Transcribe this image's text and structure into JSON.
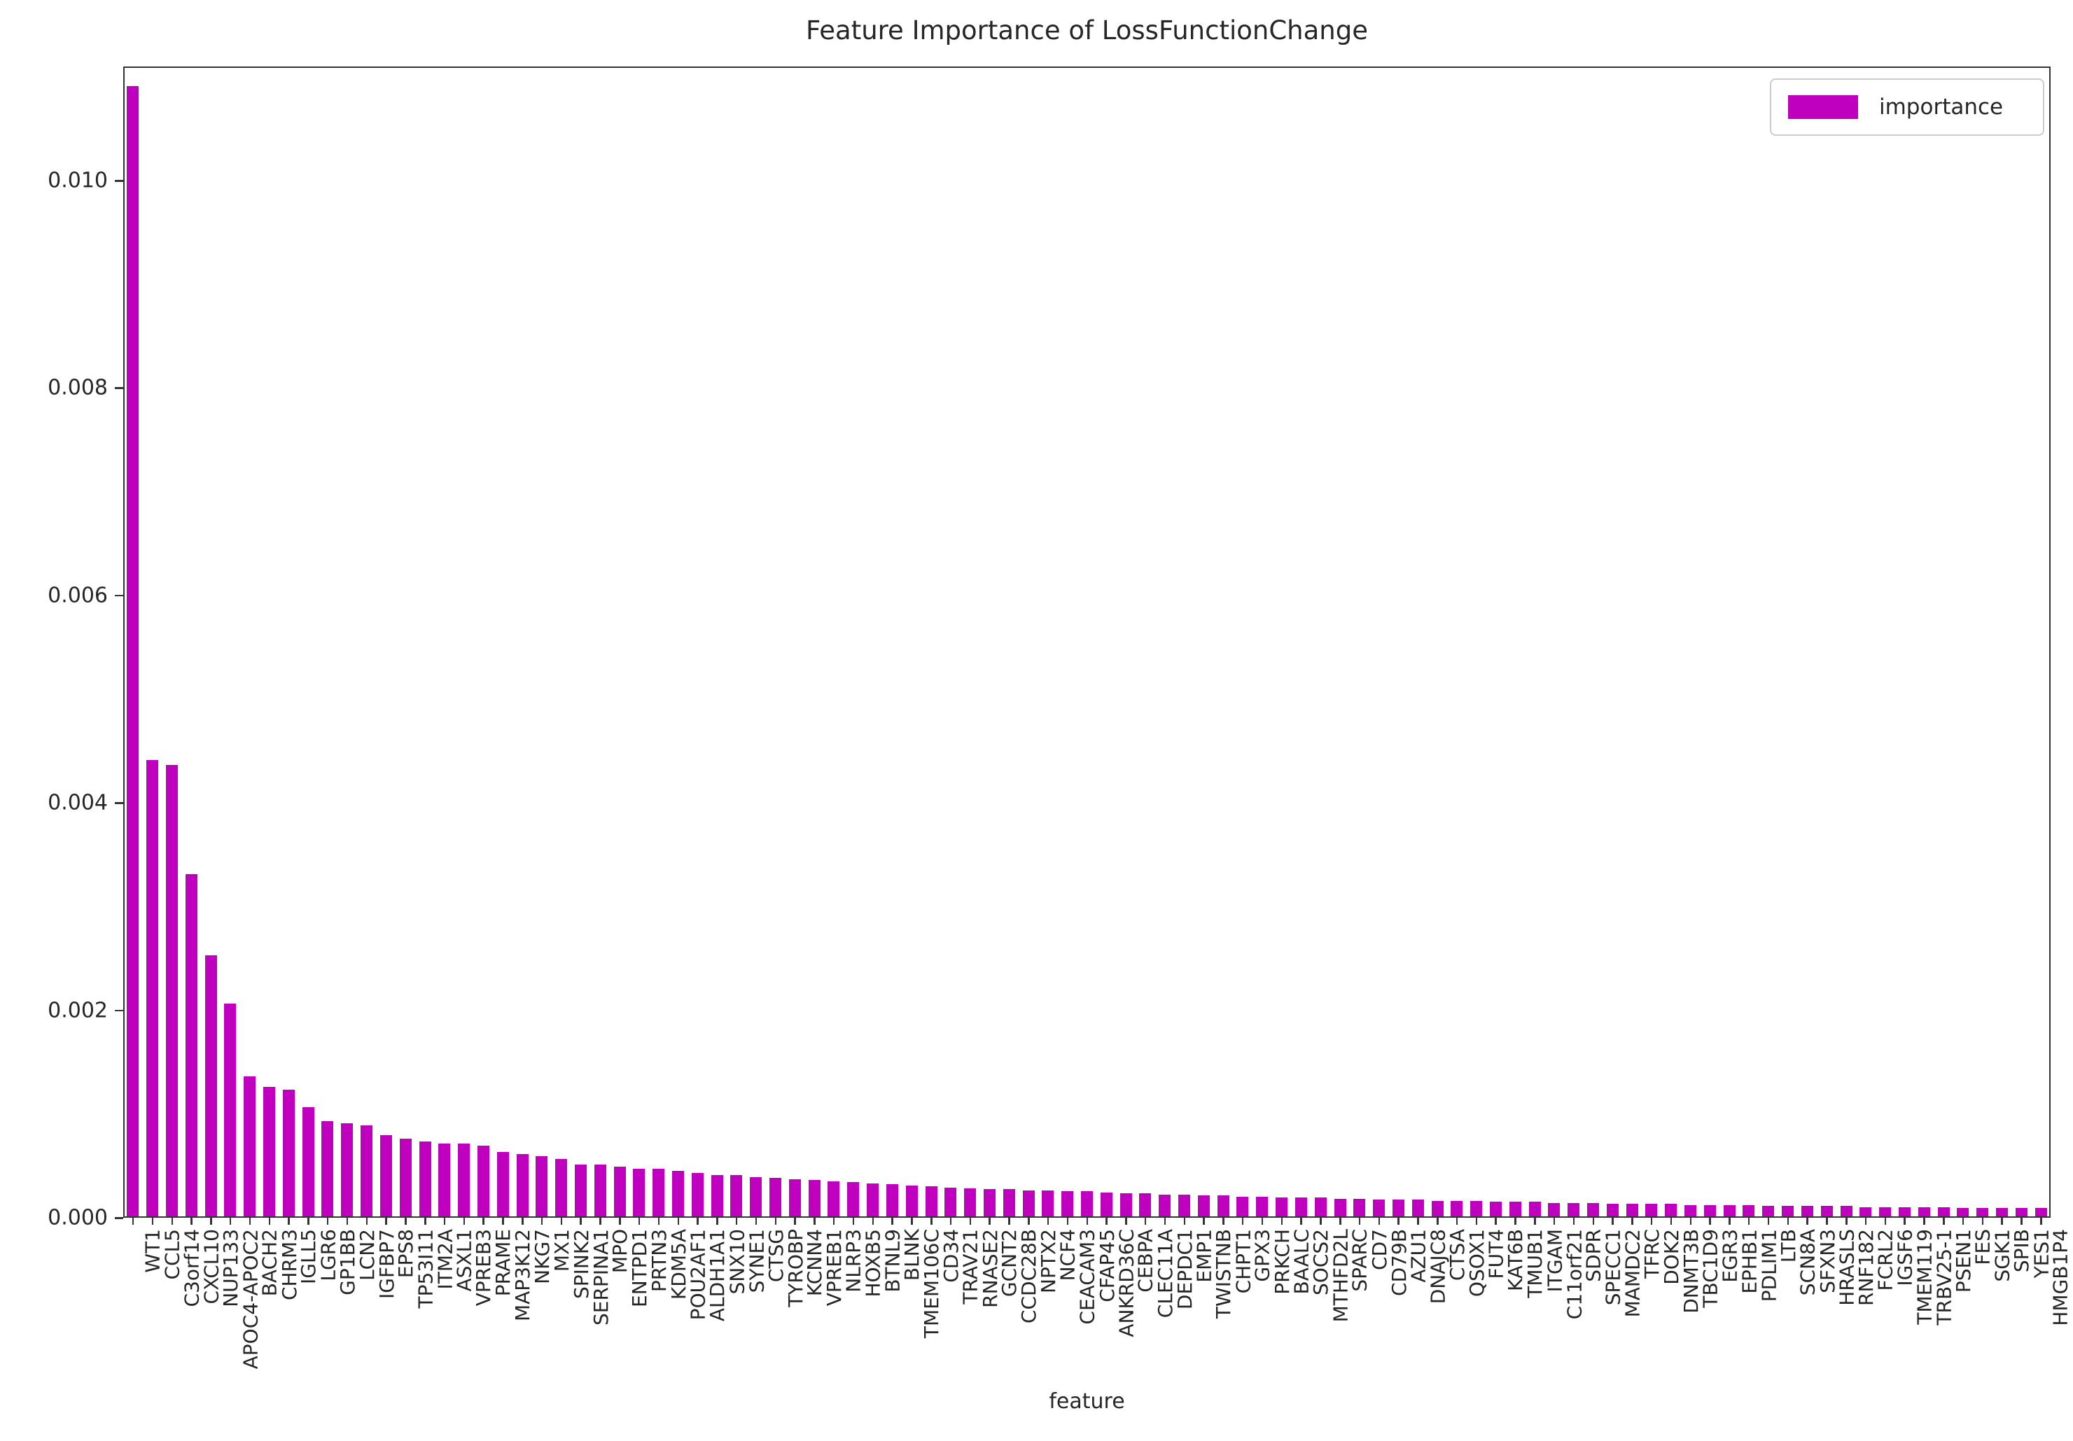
{
  "accent_color": "#bf00bf",
  "chart_data": {
    "type": "bar",
    "title": "Feature Importance of LossFunctionChange",
    "xlabel": "feature",
    "ylabel": "",
    "legend": {
      "label": "importance",
      "position": "upper right",
      "swatch_color": "#bf00bf"
    },
    "bar_color": "#bf00bf",
    "grid": false,
    "ylim": [
      0,
      0.0111
    ],
    "y_ticks": [
      "0.000",
      "0.002",
      "0.004",
      "0.006",
      "0.008",
      "0.010"
    ],
    "y_tick_values": [
      0.0,
      0.002,
      0.004,
      0.006,
      0.008,
      0.01
    ],
    "categories": [
      "WT1",
      "CCL5",
      "C3orf14",
      "CXCL10",
      "NUP133",
      "APOC4-APOC2",
      "BACH2",
      "CHRM3",
      "IGLL5",
      "LGR6",
      "GP1BB",
      "LCN2",
      "IGFBP7",
      "EPS8",
      "TP53I11",
      "ITM2A",
      "ASXL1",
      "VPREB3",
      "PRAME",
      "MAP3K12",
      "NKG7",
      "MX1",
      "SPINK2",
      "SERPINA1",
      "MPO",
      "ENTPD1",
      "PRTN3",
      "KDM5A",
      "POU2AF1",
      "ALDH1A1",
      "SNX10",
      "SYNE1",
      "CTSG",
      "TYROBP",
      "KCNN4",
      "VPREB1",
      "NLRP3",
      "HOXB5",
      "BTNL9",
      "BLNK",
      "TMEM106C",
      "CD34",
      "TRAV21",
      "RNASE2",
      "GCNT2",
      "CCDC28B",
      "NPTX2",
      "NCF4",
      "CEACAM3",
      "CFAP45",
      "ANKRD36C",
      "CEBPA",
      "CLEC11A",
      "DEPDC1",
      "EMP1",
      "TWISTNB",
      "CHPT1",
      "GPX3",
      "PRKCH",
      "BAALC",
      "SOCS2",
      "MTHFD2L",
      "SPARC",
      "CD7",
      "CD79B",
      "AZU1",
      "DNAJC8",
      "CTSA",
      "QSOX1",
      "FUT4",
      "KAT6B",
      "TMUB1",
      "ITGAM",
      "C11orf21",
      "SDPR",
      "SPECC1",
      "MAMDC2",
      "TFRC",
      "DOK2",
      "DNMT3B",
      "TBC1D9",
      "EGR3",
      "EPHB1",
      "PDLIM1",
      "LTB",
      "SCN8A",
      "SFXN3",
      "HRASLS",
      "RNF182",
      "FCRL2",
      "IGSF6",
      "TMEM119",
      "TRBV25-1",
      "PSEN1",
      "FES",
      "SGK1",
      "SPIB",
      "YES1",
      "HMGB1P4"
    ],
    "values": [
      0.0109,
      0.0044,
      0.00435,
      0.0033,
      0.00252,
      0.00205,
      0.00135,
      0.00125,
      0.00122,
      0.00105,
      0.00092,
      0.0009,
      0.00088,
      0.00078,
      0.00075,
      0.00072,
      0.0007,
      0.0007,
      0.00068,
      0.00062,
      0.0006,
      0.00058,
      0.00055,
      0.0005,
      0.0005,
      0.00048,
      0.00046,
      0.00046,
      0.00044,
      0.00042,
      0.0004,
      0.0004,
      0.00038,
      0.00037,
      0.00036,
      0.00035,
      0.00034,
      0.00033,
      0.00032,
      0.00031,
      0.0003,
      0.00029,
      0.00028,
      0.00027,
      0.00026,
      0.00026,
      0.00025,
      0.00025,
      0.00024,
      0.00024,
      0.00023,
      0.00022,
      0.00022,
      0.00021,
      0.00021,
      0.0002,
      0.0002,
      0.00019,
      0.00019,
      0.00018,
      0.00018,
      0.00018,
      0.00017,
      0.00017,
      0.00016,
      0.00016,
      0.00016,
      0.00015,
      0.00015,
      0.00015,
      0.00014,
      0.00014,
      0.00014,
      0.00013,
      0.00013,
      0.00013,
      0.00012,
      0.00012,
      0.00012,
      0.00012,
      0.00011,
      0.00011,
      0.00011,
      0.00011,
      0.0001,
      0.0001,
      0.0001,
      0.0001,
      0.0001,
      9e-05,
      9e-05,
      9e-05,
      9e-05,
      9e-05,
      8e-05,
      8e-05,
      8e-05,
      8e-05,
      8e-05
    ]
  }
}
